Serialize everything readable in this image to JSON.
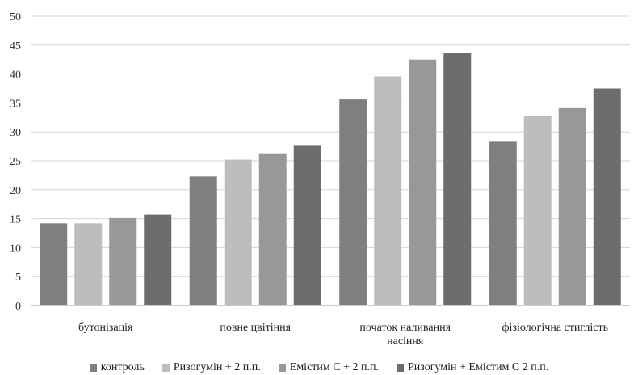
{
  "chart_data": {
    "type": "bar",
    "title": "",
    "xlabel": "",
    "ylabel": "",
    "ylim": [
      0,
      50
    ],
    "yticks": [
      "0",
      "5",
      "10",
      "15",
      "20",
      "25",
      "30",
      "35",
      "40",
      "45",
      "50"
    ],
    "grid": true,
    "legend_position": "bottom",
    "categories": [
      [
        "бутонізація"
      ],
      [
        "повне цвітіння"
      ],
      [
        "початок наливання",
        "насіння"
      ],
      [
        "фізіологічна стиглість"
      ]
    ],
    "series": [
      {
        "name": "контроль",
        "color": "#7f7f81",
        "values": [
          14.2,
          22.3,
          35.6,
          28.3
        ]
      },
      {
        "name": "Ризогумін + 2 п.п.",
        "color": "#bdbdbf",
        "values": [
          14.2,
          25.2,
          39.6,
          32.7
        ]
      },
      {
        "name": "Емістим С + 2 п.п.",
        "color": "#98989a",
        "values": [
          15.1,
          26.3,
          42.5,
          34.1
        ]
      },
      {
        "name": "Ризогумін + Емістим С 2 п.п.",
        "color": "#6d6d70",
        "values": [
          15.7,
          27.6,
          43.7,
          37.5
        ]
      }
    ]
  }
}
